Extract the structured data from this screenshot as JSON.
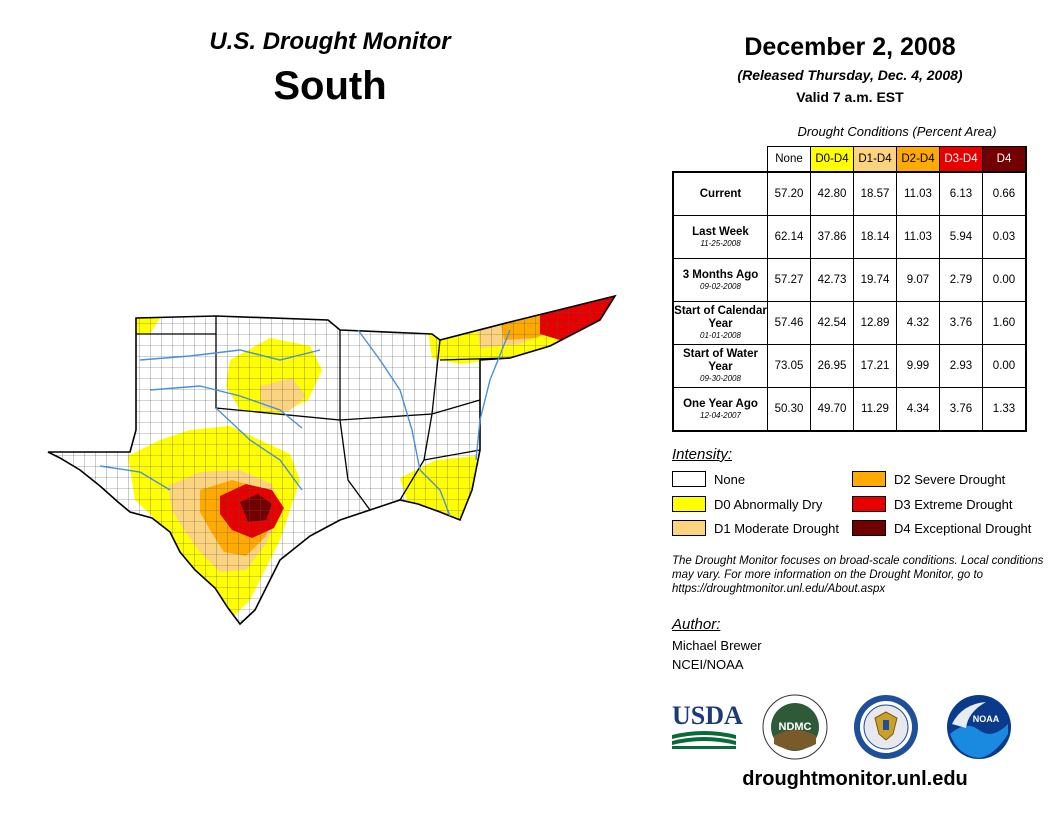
{
  "header": {
    "product": "U.S. Drought Monitor",
    "region": "South",
    "date": "December 2, 2008",
    "released": "(Released Thursday, Dec. 4, 2008)",
    "valid": "Valid 7 a.m. EST"
  },
  "table": {
    "caption": "Drought Conditions (Percent Area)",
    "columns": [
      "None",
      "D0-D4",
      "D1-D4",
      "D2-D4",
      "D3-D4",
      "D4"
    ],
    "column_colors": [
      "#ffffff",
      "#ffff00",
      "#fcd37f",
      "#ffaa00",
      "#e60000",
      "#730000"
    ],
    "rows": [
      {
        "label": "Current",
        "sub": "",
        "values": [
          "57.20",
          "42.80",
          "18.57",
          "11.03",
          "6.13",
          "0.66"
        ]
      },
      {
        "label": "Last Week",
        "sub": "11-25-2008",
        "values": [
          "62.14",
          "37.86",
          "18.14",
          "11.03",
          "5.94",
          "0.03"
        ]
      },
      {
        "label": "3 Months Ago",
        "sub": "09-02-2008",
        "values": [
          "57.27",
          "42.73",
          "19.74",
          "9.07",
          "2.79",
          "0.00"
        ]
      },
      {
        "label": "Start of Calendar Year",
        "sub": "01-01-2008",
        "values": [
          "57.46",
          "42.54",
          "12.89",
          "4.32",
          "3.76",
          "1.60"
        ]
      },
      {
        "label": "Start of Water Year",
        "sub": "09-30-2008",
        "values": [
          "73.05",
          "26.95",
          "17.21",
          "9.99",
          "2.93",
          "0.00"
        ]
      },
      {
        "label": "One Year Ago",
        "sub": "12-04-2007",
        "values": [
          "50.30",
          "49.70",
          "11.29",
          "4.34",
          "3.76",
          "1.33"
        ]
      }
    ]
  },
  "legend": {
    "title": "Intensity:",
    "items": [
      {
        "label": "None",
        "color": "#ffffff"
      },
      {
        "label": "D0 Abnormally Dry",
        "color": "#ffff00"
      },
      {
        "label": "D1 Moderate Drought",
        "color": "#fcd37f"
      },
      {
        "label": "D2 Severe Drought",
        "color": "#ffaa00"
      },
      {
        "label": "D3 Extreme Drought",
        "color": "#e60000"
      },
      {
        "label": "D4 Exceptional Drought",
        "color": "#730000"
      }
    ]
  },
  "note": "The Drought Monitor focuses on broad-scale conditions. Local conditions may vary. For more information on the Drought Monitor, go to https://droughtmonitor.unl.edu/About.aspx",
  "author": {
    "heading": "Author:",
    "name": "Michael Brewer",
    "org": "NCEI/NOAA"
  },
  "logos": {
    "usda": "USDA",
    "ndmc": "NDMC",
    "noaa": "NOAA"
  },
  "site": "droughtmonitor.unl.edu",
  "map_colors": {
    "none": "#ffffff",
    "d0": "#ffff00",
    "d1": "#fcd37f",
    "d2": "#ffaa00",
    "d3": "#e60000",
    "d4": "#730000",
    "water": "#4a90d9"
  }
}
